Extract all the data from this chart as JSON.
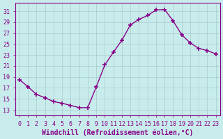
{
  "x": [
    0,
    1,
    2,
    3,
    4,
    5,
    6,
    7,
    8,
    9,
    10,
    11,
    12,
    13,
    14,
    15,
    16,
    17,
    18,
    19,
    20,
    21,
    22,
    23
  ],
  "y": [
    18.5,
    17.2,
    15.8,
    15.2,
    14.5,
    14.2,
    13.8,
    13.4,
    13.4,
    17.2,
    21.2,
    23.5,
    25.7,
    28.5,
    29.5,
    30.2,
    31.2,
    31.3,
    29.2,
    26.7,
    25.2,
    24.2,
    23.8,
    23.2
  ],
  "line_color": "#880088",
  "marker": "+",
  "marker_size": 4,
  "marker_lw": 1.2,
  "bg_color": "#c8ecec",
  "grid_color": "#aacaca",
  "xlabel": "Windchill (Refroidissement éolien,°C)",
  "xlabel_fontsize": 7,
  "yticks": [
    13,
    15,
    17,
    19,
    21,
    23,
    25,
    27,
    29,
    31
  ],
  "xticks": [
    0,
    1,
    2,
    3,
    4,
    5,
    6,
    7,
    8,
    9,
    10,
    11,
    12,
    13,
    14,
    15,
    16,
    17,
    18,
    19,
    20,
    21,
    22,
    23
  ],
  "ylim": [
    12.0,
    32.5
  ],
  "xlim": [
    -0.5,
    23.5
  ],
  "tick_fontsize": 6,
  "tick_color": "#880088",
  "spine_color": "#880088",
  "line_width": 1.0
}
